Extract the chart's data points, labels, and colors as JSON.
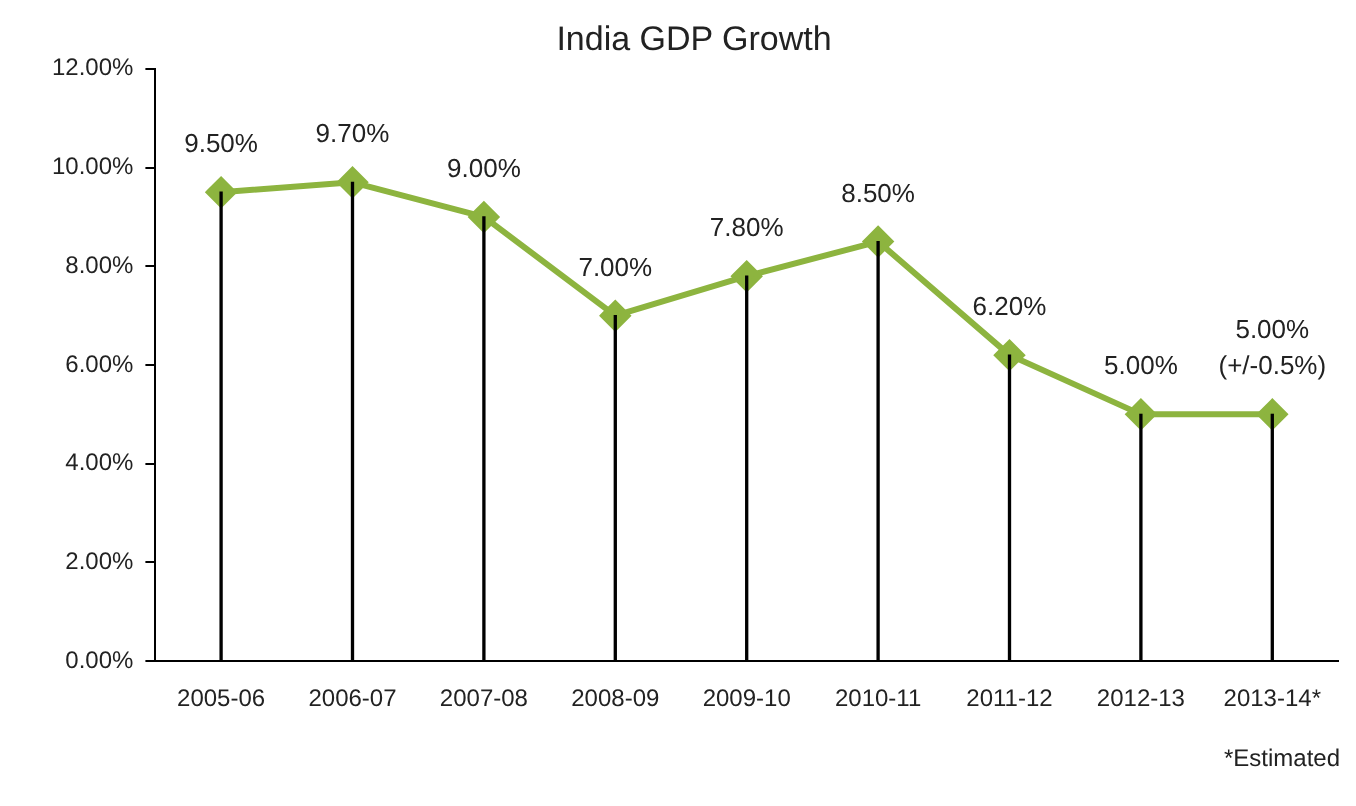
{
  "chart_data": {
    "type": "line",
    "title": "India GDP Growth",
    "categories": [
      "2005-06",
      "2006-07",
      "2007-08",
      "2008-09",
      "2009-10",
      "2010-11",
      "2011-12",
      "2012-13",
      "2013-14*"
    ],
    "series": [
      {
        "type": "bar",
        "color": "#000000",
        "values": [
          9.5,
          9.7,
          9.0,
          7.0,
          7.8,
          8.5,
          6.2,
          5.0,
          5.0
        ]
      },
      {
        "color": "#8db43f",
        "values": [
          9.5,
          9.7,
          9.0,
          7.0,
          7.8,
          8.5,
          6.2,
          5.0,
          5.0
        ],
        "value_labels": [
          "9.50%",
          "9.70%",
          "9.00%",
          "7.00%",
          "7.80%",
          "8.50%",
          "6.20%",
          "5.00%",
          "5.00%\n(+/-0.5%)"
        ]
      }
    ],
    "marker": "diamond",
    "grid": false,
    "legend": false,
    "ylim": [
      0,
      12
    ],
    "yticks": [
      {
        "value": 0,
        "label": "0.00%"
      },
      {
        "value": 2,
        "label": "2.00%"
      },
      {
        "value": 4,
        "label": "4.00%"
      },
      {
        "value": 6,
        "label": "6.00%"
      },
      {
        "value": 8,
        "label": "8.00%"
      },
      {
        "value": 10,
        "label": "10.00%"
      },
      {
        "value": 12,
        "label": "12.00%"
      }
    ],
    "annotations": [
      "*Estimated"
    ]
  }
}
